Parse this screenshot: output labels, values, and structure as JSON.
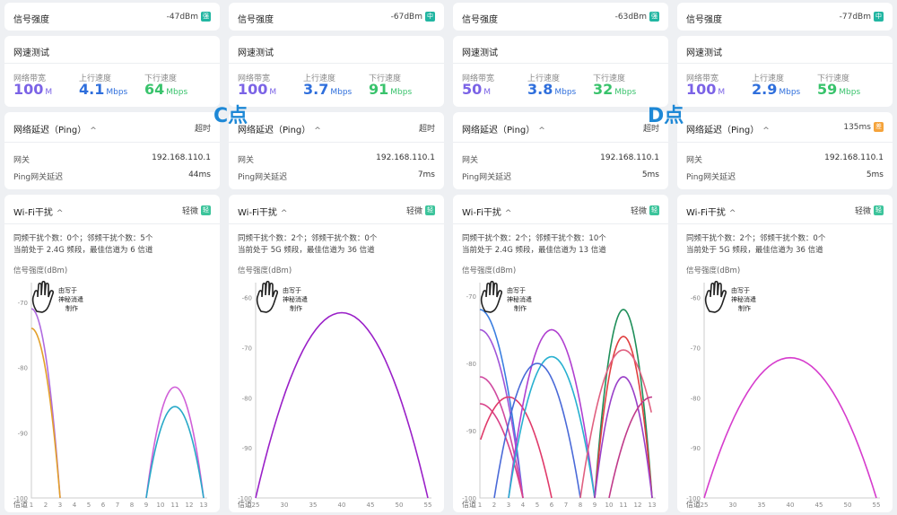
{
  "overlays": {
    "c_label": "C点",
    "d_label": "D点"
  },
  "labels": {
    "signal": "信号强度",
    "speed_title": "网速测试",
    "bandwidth": "网络带宽",
    "upload": "上行速度",
    "download": "下行速度",
    "ping_title": "网络延迟（Ping）",
    "gateway": "网关",
    "ping_gw": "Ping网关延迟",
    "wifi_title": "Wi-Fi干扰",
    "y_axis": "信号强度(dBm)",
    "channel": "信道",
    "watermark": [
      "由写于",
      "神秘消遣",
      "制作"
    ],
    "chevron": "^"
  },
  "colors": {
    "green": "#3cc49b",
    "teal": "#22b0a0",
    "blue": "#2f6fdc",
    "purple": "#7b63e6",
    "speed_green": "#39c36c"
  },
  "panels": [
    {
      "signal_value": "-47dBm",
      "signal_badge": "强",
      "badge_color": "#22b6a2",
      "bandwidth_value": "100",
      "bandwidth_unit": "M",
      "upload_value": "4.1",
      "upload_unit": "Mbps",
      "download_value": "64",
      "download_unit": "Mbps",
      "ping_status": "超时",
      "ping_status_color": "#333",
      "gateway_value": "192.168.110.1",
      "ping_gw_value": "44ms",
      "interference_level": "轻微",
      "interference_badge": "轻",
      "interference_line1": "同频干扰个数：0个；邻频干扰个数：5个",
      "interference_line2": "当前处于 2.4G 频段，最佳信道为 6 信道",
      "chart_ref": 0
    },
    {
      "signal_value": "-67dBm",
      "signal_badge": "中",
      "badge_color": "#22b6a2",
      "bandwidth_value": "100",
      "bandwidth_unit": "M",
      "upload_value": "3.7",
      "upload_unit": "Mbps",
      "download_value": "91",
      "download_unit": "Mbps",
      "ping_status": "超时",
      "ping_status_color": "#333",
      "gateway_value": "192.168.110.1",
      "ping_gw_value": "7ms",
      "interference_level": "轻微",
      "interference_badge": "轻",
      "interference_line1": "同频干扰个数：2个；邻频干扰个数：0个",
      "interference_line2": "当前处于 5G 频段，最佳信道为 36 信道",
      "chart_ref": 1
    },
    {
      "signal_value": "-63dBm",
      "signal_badge": "强",
      "badge_color": "#22b6a2",
      "bandwidth_value": "50",
      "bandwidth_unit": "M",
      "upload_value": "3.8",
      "upload_unit": "Mbps",
      "download_value": "32",
      "download_unit": "Mbps",
      "ping_status": "超时",
      "ping_status_color": "#333",
      "gateway_value": "192.168.110.1",
      "ping_gw_value": "5ms",
      "interference_level": "轻微",
      "interference_badge": "轻",
      "interference_line1": "同频干扰个数：2个；邻频干扰个数：10个",
      "interference_line2": "当前处于 2.4G 频段，最佳信道为 13 信道",
      "chart_ref": 2
    },
    {
      "signal_value": "-77dBm",
      "signal_badge": "中",
      "badge_color": "#22b6a2",
      "bandwidth_value": "100",
      "bandwidth_unit": "M",
      "upload_value": "2.9",
      "upload_unit": "Mbps",
      "download_value": "59",
      "download_unit": "Mbps",
      "ping_status": "135ms",
      "ping_status_color": "#333",
      "ping_badge": "差",
      "gateway_value": "192.168.110.1",
      "ping_gw_value": "5ms",
      "interference_level": "轻微",
      "interference_badge": "轻",
      "interference_line1": "同频干扰个数：2个；邻频干扰个数：0个",
      "interference_line2": "当前处于 5G 频段，最佳信道为 36 信道",
      "chart_ref": 3
    }
  ],
  "chart_data": [
    {
      "type": "line",
      "ylabel": "信号强度(dBm)",
      "xlabel": "信道",
      "x_ticks": [
        "1",
        "2",
        "3",
        "4",
        "5",
        "6",
        "7",
        "8",
        "9",
        "10",
        "11",
        "12",
        "13"
      ],
      "y_ticks": [
        "-70",
        "-80",
        "-90",
        "-100"
      ],
      "ylim": [
        -100,
        -67
      ],
      "series": [
        {
          "color": "#b06be0",
          "center": 1,
          "half_width": 2,
          "peak": -71
        },
        {
          "color": "#e3a02a",
          "center": 1,
          "half_width": 2,
          "peak": -74
        },
        {
          "color": "#d060d8",
          "center": 11,
          "half_width": 2,
          "peak": -83
        },
        {
          "color": "#28a9c8",
          "center": 11,
          "half_width": 2,
          "peak": -86
        }
      ]
    },
    {
      "type": "line",
      "ylabel": "信号强度(dBm)",
      "xlabel": "信道",
      "x_ticks": [
        "25",
        "30",
        "35",
        "40",
        "45",
        "50",
        "55"
      ],
      "x_tick_values": [
        25,
        30,
        35,
        40,
        45,
        50,
        55
      ],
      "y_ticks": [
        "-60",
        "-70",
        "-80",
        "-90",
        "-100"
      ],
      "ylim": [
        -100,
        -57
      ],
      "series": [
        {
          "color": "#9a20c8",
          "center": 40,
          "half_width": 15,
          "peak": -63
        }
      ]
    },
    {
      "type": "line",
      "ylabel": "信号强度(dBm)",
      "xlabel": "信道",
      "x_ticks": [
        "1",
        "2",
        "3",
        "4",
        "5",
        "6",
        "7",
        "8",
        "9",
        "10",
        "11",
        "12",
        "13"
      ],
      "y_ticks": [
        "-70",
        "-80",
        "-90",
        "-100"
      ],
      "ylim": [
        -100,
        -68
      ],
      "series": [
        {
          "color": "#3a7ee0",
          "center": 1,
          "half_width": 3,
          "peak": -72
        },
        {
          "color": "#a055d8",
          "center": 1,
          "half_width": 3,
          "peak": -75
        },
        {
          "color": "#d04aa0",
          "center": 1,
          "half_width": 3,
          "peak": -82
        },
        {
          "color": "#d84088",
          "center": 1,
          "half_width": 3,
          "peak": -86
        },
        {
          "color": "#e03a6a",
          "center": 3,
          "half_width": 3,
          "peak": -85
        },
        {
          "color": "#b040d0",
          "center": 6,
          "half_width": 3,
          "peak": -75
        },
        {
          "color": "#28b0d0",
          "center": 6,
          "half_width": 3,
          "peak": -79
        },
        {
          "color": "#4a6ad8",
          "center": 5,
          "half_width": 3,
          "peak": -80
        },
        {
          "color": "#1f8f5a",
          "center": 11,
          "half_width": 2,
          "peak": -72
        },
        {
          "color": "#e04040",
          "center": 11,
          "half_width": 2,
          "peak": -76
        },
        {
          "color": "#e06080",
          "center": 11,
          "half_width": 3,
          "peak": -78
        },
        {
          "color": "#9a40c8",
          "center": 11,
          "half_width": 2,
          "peak": -82
        },
        {
          "color": "#c03a8a",
          "center": 13,
          "half_width": 3,
          "peak": -85
        }
      ]
    },
    {
      "type": "line",
      "ylabel": "信号强度(dBm)",
      "xlabel": "信道",
      "x_ticks": [
        "25",
        "30",
        "35",
        "40",
        "45",
        "50",
        "55"
      ],
      "x_tick_values": [
        25,
        30,
        35,
        40,
        45,
        50,
        55
      ],
      "y_ticks": [
        "-60",
        "-70",
        "-80",
        "-90",
        "-100"
      ],
      "ylim": [
        -100,
        -57
      ],
      "series": [
        {
          "color": "#d63ccd",
          "center": 40,
          "half_width": 15,
          "peak": -72
        }
      ]
    }
  ]
}
